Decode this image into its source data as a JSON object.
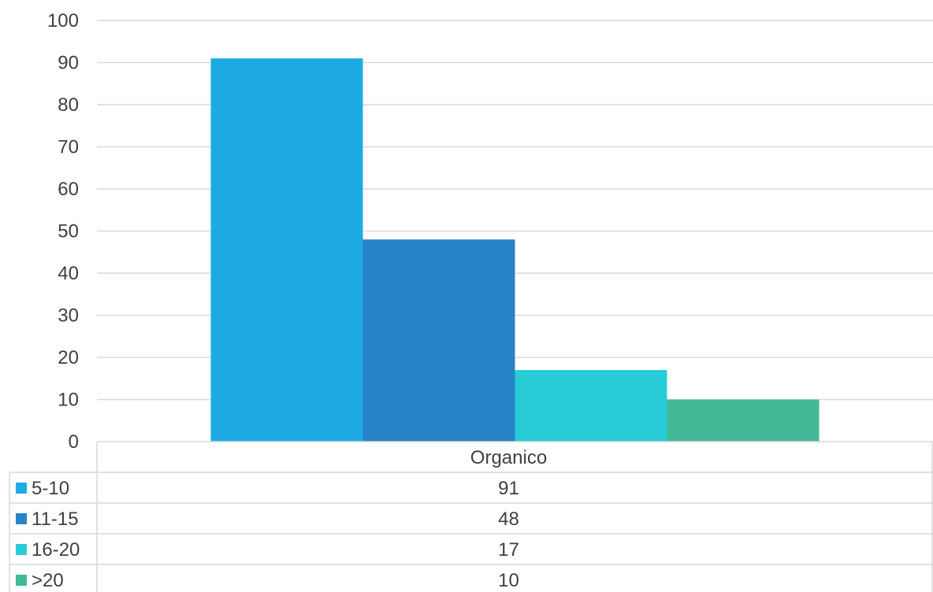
{
  "chart_data": {
    "type": "bar",
    "categories": [
      "Organico"
    ],
    "series": [
      {
        "name": "5-10",
        "values": [
          91
        ],
        "color": "#1EABE3"
      },
      {
        "name": "11-15",
        "values": [
          48
        ],
        "color": "#2784C7"
      },
      {
        "name": "16-20",
        "values": [
          17
        ],
        "color": "#27CCD6"
      },
      {
        "name": ">20",
        "values": [
          10
        ],
        "color": "#42B996"
      }
    ],
    "ylim": [
      0,
      100
    ],
    "yticks": [
      0,
      10,
      20,
      30,
      40,
      50,
      60,
      70,
      80,
      90,
      100
    ],
    "grid": true,
    "legend": "data-table-below",
    "data_table": true
  },
  "colors": {
    "gridline": "#d9d9d9",
    "text": "#404040",
    "table_border": "#d9d9d9"
  }
}
